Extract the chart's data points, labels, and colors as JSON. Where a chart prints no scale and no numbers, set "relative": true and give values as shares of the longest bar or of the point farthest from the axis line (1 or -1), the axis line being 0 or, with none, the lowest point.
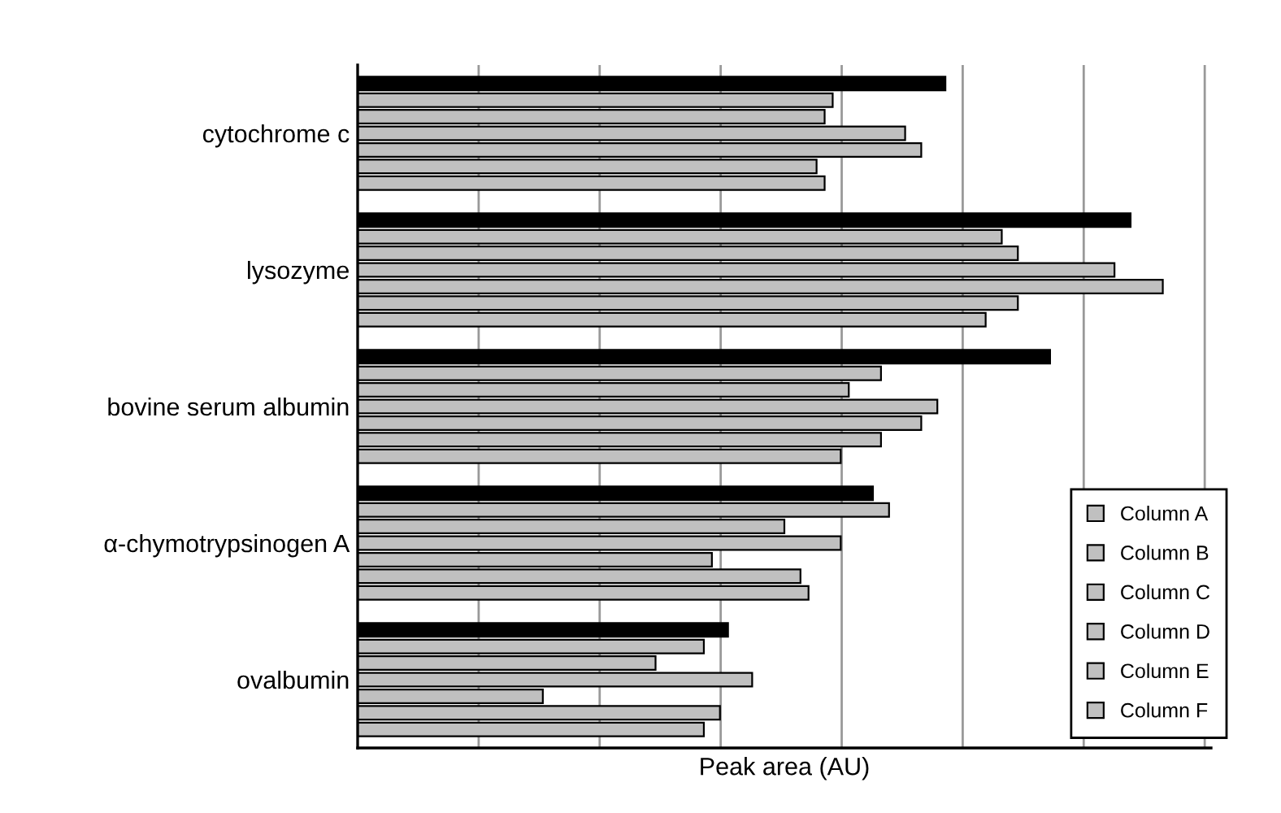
{
  "chart_data": {
    "type": "bar",
    "orientation": "horizontal",
    "relative": true,
    "xlabel": "Peak area (AU)",
    "categories": [
      "cytochrome c",
      "lysozyme",
      "bovine serum albumin",
      "α-chymotrypsinogen A",
      "ovalbumin"
    ],
    "series": [
      {
        "color": "#000000",
        "values": [
          0.73,
          0.96,
          0.86,
          0.64,
          0.46
        ]
      },
      {
        "name": "Column A",
        "color": "#c0c0c0",
        "values": [
          0.59,
          0.8,
          0.65,
          0.66,
          0.43
        ]
      },
      {
        "name": "Column B",
        "color": "#c0c0c0",
        "values": [
          0.58,
          0.82,
          0.61,
          0.53,
          0.37
        ]
      },
      {
        "name": "Column C",
        "color": "#c0c0c0",
        "values": [
          0.68,
          0.94,
          0.72,
          0.6,
          0.49
        ]
      },
      {
        "name": "Column D",
        "color": "#c0c0c0",
        "values": [
          0.7,
          1.0,
          0.7,
          0.44,
          0.23
        ]
      },
      {
        "name": "Column E",
        "color": "#c0c0c0",
        "values": [
          0.57,
          0.82,
          0.65,
          0.55,
          0.45
        ]
      },
      {
        "name": "Column F",
        "color": "#c0c0c0",
        "values": [
          0.58,
          0.78,
          0.6,
          0.56,
          0.43
        ]
      }
    ],
    "grid": "x",
    "legend": "bottom right"
  }
}
